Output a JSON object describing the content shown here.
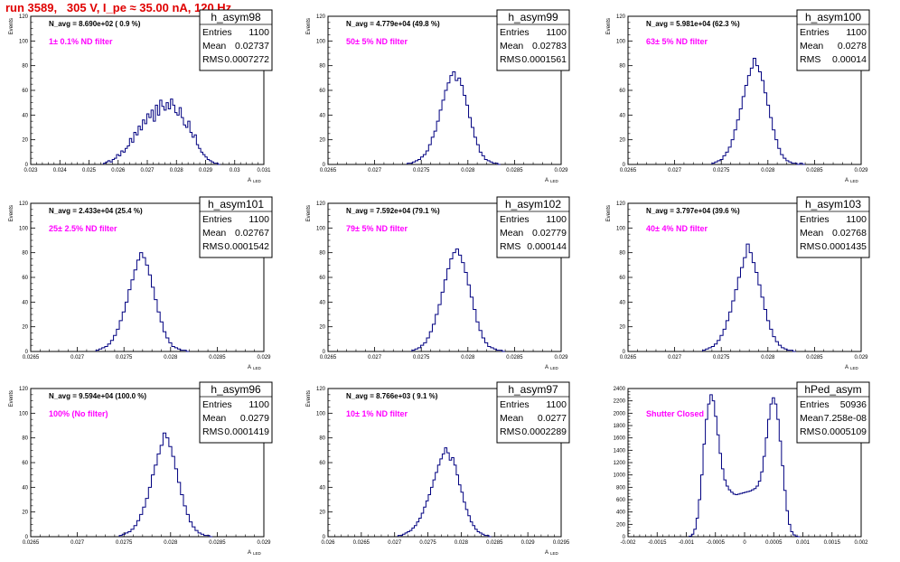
{
  "page_title": "run 3589,   305 V, I_pe ≈ 35.00 nA, 120 Hz",
  "stats_labels": {
    "entries": "Entries",
    "mean": "Mean",
    "rms": "RMS"
  },
  "colors": {
    "hist": "#000080",
    "title": "#e00000",
    "annotation": "#ff00ff"
  },
  "chart_data": [
    {
      "type": "bar",
      "name": "h_asym98",
      "ylabel": "Events",
      "xlabel": "A",
      "xlabel_sub": "LED",
      "navg": "N_avg = 8.690e+02 ( 0.9 %)",
      "filter": "1± 0.1% ND filter",
      "stats": {
        "entries": "1100",
        "mean": "0.02737",
        "rms": "0.0007272"
      },
      "xlim": [
        0.023,
        0.031
      ],
      "ylim": [
        0,
        120
      ],
      "xticks": [
        0.023,
        0.024,
        0.025,
        0.026,
        0.027,
        0.028,
        0.029,
        0.03,
        0.031
      ],
      "xtick_labels": [
        "0.023",
        "0.024",
        "0.025",
        "0.026",
        "0.027",
        "0.028",
        "0.029",
        "0.03",
        "0.031"
      ],
      "yticks": [
        0,
        20,
        40,
        60,
        80,
        100,
        120
      ],
      "bin_range": [
        0.0255,
        0.0295
      ],
      "values": [
        1,
        2,
        3,
        2,
        4,
        5,
        8,
        7,
        11,
        10,
        13,
        15,
        21,
        18,
        26,
        24,
        31,
        28,
        36,
        33,
        41,
        38,
        44,
        35,
        48,
        40,
        52,
        47,
        44,
        50,
        45,
        53,
        48,
        42,
        40,
        46,
        38,
        32,
        30,
        35,
        26,
        22,
        24,
        16,
        13,
        10,
        8,
        6,
        4,
        3,
        2,
        1,
        1,
        0
      ]
    },
    {
      "type": "bar",
      "name": "h_asym99",
      "ylabel": "Events",
      "xlabel": "A",
      "xlabel_sub": "LED",
      "navg": "N_avg = 4.779e+04 (49.8 %)",
      "filter": "50± 5% ND filter",
      "stats": {
        "entries": "1100",
        "mean": "0.02783",
        "rms": "0.0001561"
      },
      "xlim": [
        0.0265,
        0.029
      ],
      "ylim": [
        0,
        120
      ],
      "xticks": [
        0.0265,
        0.027,
        0.0275,
        0.028,
        0.0285,
        0.029
      ],
      "xtick_labels": [
        "0.0265",
        "0.027",
        "0.0275",
        "0.028",
        "0.0285",
        "0.029"
      ],
      "yticks": [
        0,
        20,
        40,
        60,
        80,
        100,
        120
      ],
      "bin_range": [
        0.02735,
        0.02835
      ],
      "values": [
        1,
        1,
        2,
        3,
        4,
        6,
        8,
        11,
        16,
        22,
        27,
        35,
        44,
        52,
        60,
        66,
        72,
        75,
        68,
        70,
        64,
        56,
        48,
        38,
        30,
        22,
        16,
        10,
        7,
        4,
        3,
        2,
        1,
        1,
        0
      ]
    },
    {
      "type": "bar",
      "name": "h_asym100",
      "ylabel": "Events",
      "xlabel": "A",
      "xlabel_sub": "LED",
      "navg": "N_avg = 5.981e+04 (62.3 %)",
      "filter": "63± 5% ND filter",
      "stats": {
        "entries": "1100",
        "mean": "0.0278",
        "rms": "0.00014"
      },
      "xlim": [
        0.0265,
        0.029
      ],
      "ylim": [
        0,
        120
      ],
      "xticks": [
        0.0265,
        0.027,
        0.0275,
        0.028,
        0.0285,
        0.029
      ],
      "xtick_labels": [
        "0.0265",
        "0.027",
        "0.0275",
        "0.028",
        "0.0285",
        "0.029"
      ],
      "yticks": [
        0,
        20,
        40,
        60,
        80,
        100,
        120
      ],
      "bin_range": [
        0.0274,
        0.0284
      ],
      "values": [
        1,
        2,
        3,
        4,
        7,
        10,
        14,
        20,
        28,
        36,
        45,
        55,
        64,
        72,
        78,
        86,
        80,
        75,
        68,
        58,
        48,
        38,
        28,
        20,
        13,
        8,
        5,
        3,
        2,
        1,
        1,
        0,
        1,
        0
      ]
    },
    {
      "type": "bar",
      "name": "h_asym101",
      "ylabel": "Events",
      "xlabel": "A",
      "xlabel_sub": "LED",
      "navg": "N_avg = 2.433e+04 (25.4 %)",
      "filter": "25± 2.5% ND filter",
      "stats": {
        "entries": "1100",
        "mean": "0.02767",
        "rms": "0.0001542"
      },
      "xlim": [
        0.0265,
        0.029
      ],
      "ylim": [
        0,
        120
      ],
      "xticks": [
        0.0265,
        0.027,
        0.0275,
        0.028,
        0.0285,
        0.029
      ],
      "xtick_labels": [
        "0.0265",
        "0.027",
        "0.0275",
        "0.028",
        "0.0285",
        "0.029"
      ],
      "yticks": [
        0,
        20,
        40,
        60,
        80,
        100,
        120
      ],
      "bin_range": [
        0.0272,
        0.0282
      ],
      "values": [
        1,
        2,
        3,
        4,
        6,
        9,
        13,
        18,
        25,
        32,
        40,
        50,
        58,
        66,
        74,
        80,
        76,
        70,
        62,
        52,
        42,
        32,
        24,
        16,
        11,
        7,
        4,
        3,
        2,
        1,
        1,
        0
      ]
    },
    {
      "type": "bar",
      "name": "h_asym102",
      "ylabel": "Events",
      "xlabel": "A",
      "xlabel_sub": "LED",
      "navg": "N_avg = 7.592e+04 (79.1 %)",
      "filter": "79± 5% ND filter",
      "stats": {
        "entries": "1100",
        "mean": "0.02779",
        "rms": "0.000144"
      },
      "xlim": [
        0.0265,
        0.029
      ],
      "ylim": [
        0,
        120
      ],
      "xticks": [
        0.0265,
        0.027,
        0.0275,
        0.028,
        0.0285,
        0.029
      ],
      "xtick_labels": [
        "0.0265",
        "0.027",
        "0.0275",
        "0.028",
        "0.0285",
        "0.029"
      ],
      "yticks": [
        0,
        20,
        40,
        60,
        80,
        100,
        120
      ],
      "bin_range": [
        0.0274,
        0.0284
      ],
      "values": [
        1,
        2,
        3,
        5,
        7,
        11,
        16,
        22,
        30,
        38,
        48,
        58,
        67,
        75,
        80,
        83,
        78,
        72,
        64,
        54,
        44,
        34,
        24,
        17,
        11,
        7,
        4,
        3,
        2,
        1,
        1,
        0
      ]
    },
    {
      "type": "bar",
      "name": "h_asym103",
      "ylabel": "Events",
      "xlabel": "A",
      "xlabel_sub": "LED",
      "navg": "N_avg = 3.797e+04 (39.6 %)",
      "filter": "40± 4% ND filter",
      "stats": {
        "entries": "1100",
        "mean": "0.02768",
        "rms": "0.0001435"
      },
      "xlim": [
        0.0265,
        0.029
      ],
      "ylim": [
        0,
        120
      ],
      "xticks": [
        0.0265,
        0.027,
        0.0275,
        0.028,
        0.0285,
        0.029
      ],
      "xtick_labels": [
        "0.0265",
        "0.027",
        "0.0275",
        "0.028",
        "0.0285",
        "0.029"
      ],
      "yticks": [
        0,
        20,
        40,
        60,
        80,
        100,
        120
      ],
      "bin_range": [
        0.0273,
        0.0283
      ],
      "values": [
        1,
        2,
        3,
        4,
        6,
        9,
        13,
        18,
        25,
        32,
        41,
        50,
        60,
        68,
        76,
        87,
        80,
        72,
        64,
        54,
        44,
        34,
        25,
        18,
        12,
        8,
        5,
        3,
        2,
        1,
        1,
        0
      ]
    },
    {
      "type": "bar",
      "name": "h_asym96",
      "ylabel": "Events",
      "xlabel": "A",
      "xlabel_sub": "LED",
      "navg": "N_avg = 9.594e+04 (100.0 %)",
      "filter": "100% (No filter)",
      "stats": {
        "entries": "1100",
        "mean": "0.0279",
        "rms": "0.0001419"
      },
      "xlim": [
        0.0265,
        0.029
      ],
      "ylim": [
        0,
        120
      ],
      "xticks": [
        0.0265,
        0.027,
        0.0275,
        0.028,
        0.0285,
        0.029
      ],
      "xtick_labels": [
        "0.0265",
        "0.027",
        "0.0275",
        "0.028",
        "0.0285",
        "0.029"
      ],
      "yticks": [
        0,
        20,
        40,
        60,
        80,
        100,
        120
      ],
      "bin_range": [
        0.02745,
        0.02845
      ],
      "values": [
        1,
        2,
        3,
        4,
        6,
        9,
        13,
        18,
        24,
        31,
        40,
        50,
        58,
        67,
        74,
        84,
        80,
        73,
        65,
        55,
        44,
        34,
        25,
        18,
        12,
        8,
        5,
        3,
        2,
        1,
        1,
        0
      ]
    },
    {
      "type": "bar",
      "name": "h_asym97",
      "ylabel": "Events",
      "xlabel": "A",
      "xlabel_sub": "LED",
      "navg": "N_avg = 8.766e+03 ( 9.1 %)",
      "filter": "10± 1% ND filter",
      "stats": {
        "entries": "1100",
        "mean": "0.0277",
        "rms": "0.0002289"
      },
      "xlim": [
        0.026,
        0.0295
      ],
      "ylim": [
        0,
        120
      ],
      "xticks": [
        0.026,
        0.0265,
        0.027,
        0.0275,
        0.028,
        0.0285,
        0.029,
        0.0295
      ],
      "xtick_labels": [
        "0.026",
        "0.0265",
        "0.027",
        "0.0275",
        "0.028",
        "0.0285",
        "0.029",
        "0.0295"
      ],
      "yticks": [
        0,
        20,
        40,
        60,
        80,
        100,
        120
      ],
      "bin_range": [
        0.02705,
        0.02845
      ],
      "values": [
        1,
        1,
        2,
        3,
        4,
        5,
        7,
        9,
        12,
        15,
        19,
        24,
        29,
        34,
        40,
        46,
        52,
        58,
        63,
        67,
        72,
        68,
        62,
        64,
        58,
        50,
        42,
        36,
        28,
        22,
        17,
        12,
        9,
        6,
        4,
        3,
        2,
        1,
        1,
        0
      ]
    },
    {
      "type": "bar",
      "name": "hPed_asym",
      "ylabel": "",
      "xlabel": "",
      "xlabel_sub": "",
      "navg": "",
      "filter": "Shutter Closed",
      "stats": {
        "entries": "50936",
        "mean": "7.258e-08",
        "rms": "0.0005109"
      },
      "xlim": [
        -0.002,
        0.002
      ],
      "ylim": [
        0,
        2400
      ],
      "xticks": [
        -0.002,
        -0.0015,
        -0.001,
        -0.0005,
        0,
        0.0005,
        0.001,
        0.0015,
        0.002
      ],
      "xtick_labels": [
        "-0.002",
        "-0.0015",
        "-0.001",
        "-0.0005",
        "0",
        "0.0005",
        "0.001",
        "0.0015",
        "0.002"
      ],
      "yticks": [
        0,
        200,
        400,
        600,
        800,
        1000,
        1200,
        1400,
        1600,
        1800,
        2000,
        2200,
        2400
      ],
      "bin_range": [
        -0.00095,
        0.00095
      ],
      "values": [
        10,
        40,
        120,
        300,
        600,
        1000,
        1500,
        1900,
        2150,
        2300,
        2200,
        1950,
        1650,
        1350,
        1100,
        920,
        820,
        760,
        720,
        690,
        680,
        690,
        700,
        710,
        720,
        730,
        740,
        760,
        780,
        820,
        900,
        1050,
        1300,
        1600,
        1900,
        2150,
        2250,
        2150,
        1900,
        1550,
        1150,
        750,
        420,
        200,
        80,
        30,
        10,
        0
      ]
    }
  ]
}
